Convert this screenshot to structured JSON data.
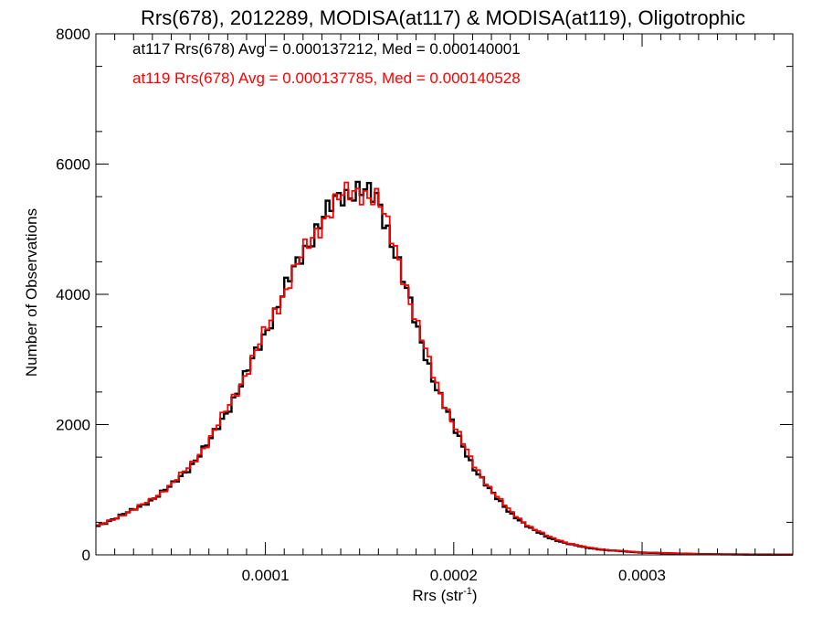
{
  "chart_data": {
    "type": "step-histogram",
    "title": "Rrs(678), 2012289, MODISA(at117) & MODISA(at119), Oligotrophic",
    "xlabel": "Rrs (str",
    "xlabel_sup": "-1",
    "xlabel_close": ")",
    "ylabel": "Number of Observations",
    "xlim": [
      1e-05,
      0.00038
    ],
    "ylim": [
      0,
      8000
    ],
    "x_ticks": [
      0.0001,
      0.0002,
      0.0003
    ],
    "x_tick_labels": [
      "0.0001",
      "0.0002",
      "0.0003"
    ],
    "y_ticks": [
      0,
      2000,
      4000,
      6000,
      8000
    ],
    "y_tick_labels": [
      "0",
      "2000",
      "4000",
      "6000",
      "8000"
    ],
    "grid": false,
    "legend_position": "top-left",
    "bin_width": 2e-06,
    "series": [
      {
        "legend": "at117 Rrs(678) Avg = 0.000137212, Med = 0.000140001",
        "color": "#000000",
        "control_points": [
          [
            1e-05,
            430
          ],
          [
            2e-05,
            560
          ],
          [
            3e-05,
            690
          ],
          [
            4e-05,
            850
          ],
          [
            5e-05,
            1060
          ],
          [
            6e-05,
            1350
          ],
          [
            7e-05,
            1720
          ],
          [
            8e-05,
            2230
          ],
          [
            9e-05,
            2780
          ],
          [
            0.0001,
            3420
          ],
          [
            0.00011,
            4050
          ],
          [
            0.00012,
            4650
          ],
          [
            0.00013,
            5150
          ],
          [
            0.00014,
            5500
          ],
          [
            0.00015,
            5650
          ],
          [
            0.00016,
            5400
          ],
          [
            0.00017,
            4600
          ],
          [
            0.00018,
            3500
          ],
          [
            0.00019,
            2650
          ],
          [
            0.0002,
            1950
          ],
          [
            0.00021,
            1380
          ],
          [
            0.00022,
            960
          ],
          [
            0.00023,
            650
          ],
          [
            0.00024,
            420
          ],
          [
            0.00025,
            270
          ],
          [
            0.00026,
            175
          ],
          [
            0.00027,
            115
          ],
          [
            0.00028,
            75
          ],
          [
            0.0003,
            35
          ],
          [
            0.00033,
            12
          ],
          [
            0.00036,
            4
          ],
          [
            0.00038,
            2
          ]
        ]
      },
      {
        "legend": "at119 Rrs(678) Avg = 0.000137785, Med = 0.000140528",
        "color": "#ff0000",
        "control_points": [
          [
            1e-05,
            430
          ],
          [
            2e-05,
            560
          ],
          [
            3e-05,
            690
          ],
          [
            4e-05,
            860
          ],
          [
            5e-05,
            1070
          ],
          [
            6e-05,
            1370
          ],
          [
            7e-05,
            1740
          ],
          [
            8e-05,
            2260
          ],
          [
            9e-05,
            2800
          ],
          [
            0.0001,
            3430
          ],
          [
            0.00011,
            4030
          ],
          [
            0.00012,
            4620
          ],
          [
            0.00013,
            5120
          ],
          [
            0.00014,
            5480
          ],
          [
            0.00015,
            5620
          ],
          [
            0.00016,
            5420
          ],
          [
            0.00017,
            4650
          ],
          [
            0.00018,
            3560
          ],
          [
            0.00019,
            2700
          ],
          [
            0.0002,
            2000
          ],
          [
            0.00021,
            1420
          ],
          [
            0.00022,
            990
          ],
          [
            0.00023,
            670
          ],
          [
            0.00024,
            440
          ],
          [
            0.00025,
            285
          ],
          [
            0.00026,
            185
          ],
          [
            0.00027,
            120
          ],
          [
            0.00028,
            80
          ],
          [
            0.0003,
            38
          ],
          [
            0.00033,
            13
          ],
          [
            0.00036,
            5
          ],
          [
            0.00038,
            2
          ]
        ]
      }
    ]
  }
}
